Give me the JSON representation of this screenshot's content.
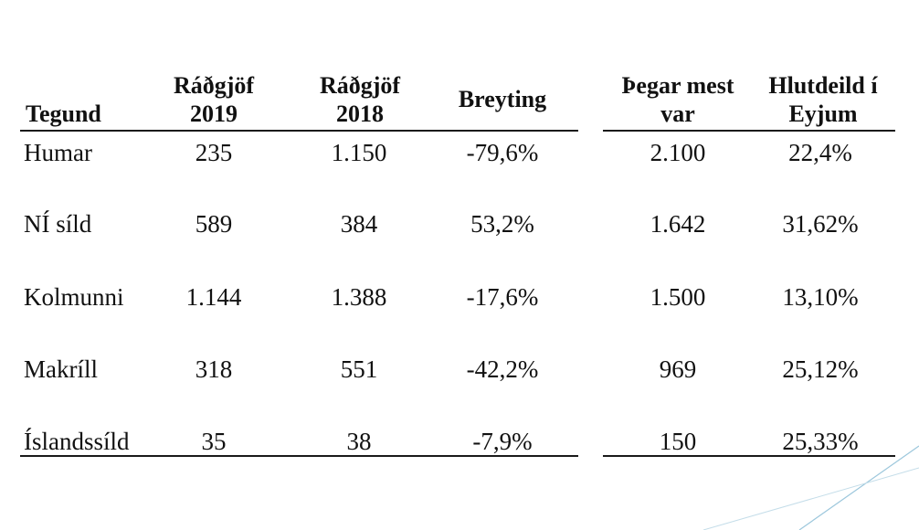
{
  "table": {
    "headers": {
      "tegund": [
        "Tegund"
      ],
      "radgjof_2019": [
        "Ráðgjöf",
        "2019"
      ],
      "radgjof_2018": [
        "Ráðgjöf",
        "2018"
      ],
      "breyting": [
        "Breyting"
      ],
      "thegar_mest_var": [
        "Þegar mest",
        "var"
      ],
      "hlutdeild": [
        "Hlutdeild í",
        "Eyjum"
      ]
    },
    "rows": [
      {
        "tegund": "Humar",
        "radgjof_2019": "235",
        "radgjof_2018": "1.150",
        "breyting": "-79,6%",
        "thegar_mest_var": "2.100",
        "hlutdeild": "22,4%"
      },
      {
        "tegund": "NÍ síld",
        "radgjof_2019": "589",
        "radgjof_2018": "384",
        "breyting": "53,2%",
        "thegar_mest_var": "1.642",
        "hlutdeild": "31,62%"
      },
      {
        "tegund": "Kolmunni",
        "radgjof_2019": "1.144",
        "radgjof_2018": "1.388",
        "breyting": "-17,6%",
        "thegar_mest_var": "1.500",
        "hlutdeild": "13,10%"
      },
      {
        "tegund": "Makríll",
        "radgjof_2019": "318",
        "radgjof_2018": "551",
        "breyting": "-42,2%",
        "thegar_mest_var": "969",
        "hlutdeild": "25,12%"
      },
      {
        "tegund": "Íslandssíld",
        "radgjof_2019": "35",
        "radgjof_2018": "38",
        "breyting": "-7,9%",
        "thegar_mest_var": "150",
        "hlutdeild": "25,33%"
      }
    ]
  },
  "colors": {
    "text": "#111111",
    "rule": "#1a1a1a",
    "decoration": "#9cc7dc"
  }
}
